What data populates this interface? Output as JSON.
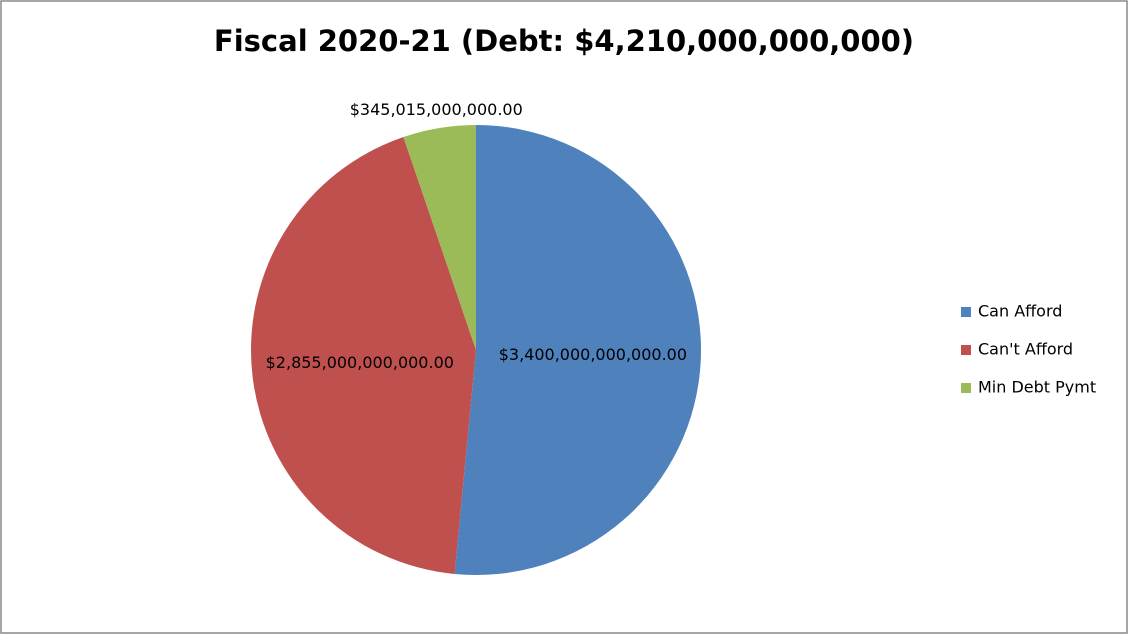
{
  "chart_data": {
    "type": "pie",
    "title": "Fiscal 2020-21 (Debt: $4,210,000,000,000)",
    "categories": [
      "Can Afford",
      "Can't Afford",
      "Min Debt Pymt"
    ],
    "values": [
      3400000000000,
      2855000000000,
      345015000000
    ],
    "value_labels": [
      "$3,400,000,000,000.00",
      "$2,855,000,000,000.00",
      "$345,015,000,000.00"
    ],
    "colors": [
      "#4f81bd",
      "#c0504d",
      "#9bbb59"
    ],
    "legend": "right"
  }
}
